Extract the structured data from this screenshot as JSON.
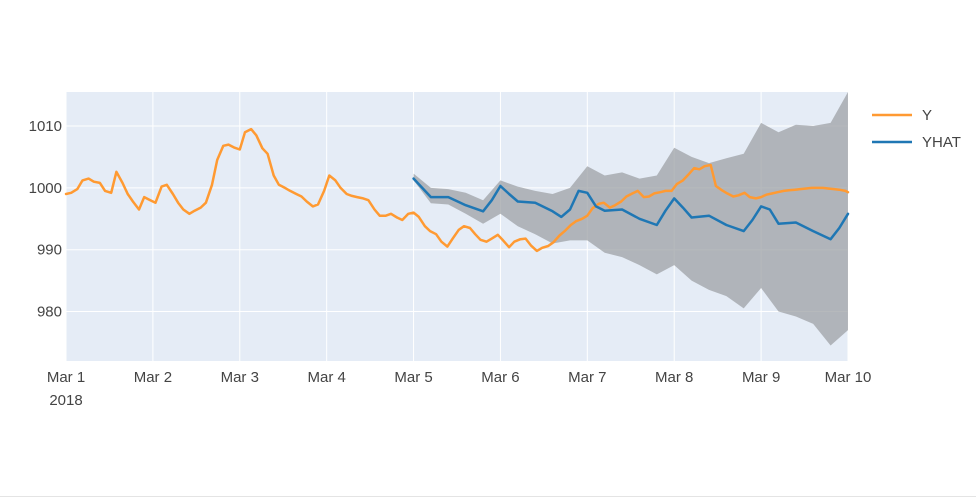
{
  "chart_data": {
    "type": "line",
    "x_ticks": [
      {
        "label": "Mar 1",
        "sub": "2018",
        "value": 0
      },
      {
        "label": "Mar 2",
        "sub": "",
        "value": 1
      },
      {
        "label": "Mar 3",
        "sub": "",
        "value": 2
      },
      {
        "label": "Mar 4",
        "sub": "",
        "value": 3
      },
      {
        "label": "Mar 5",
        "sub": "",
        "value": 4
      },
      {
        "label": "Mar 6",
        "sub": "",
        "value": 5
      },
      {
        "label": "Mar 7",
        "sub": "",
        "value": 6
      },
      {
        "label": "Mar 8",
        "sub": "",
        "value": 7
      },
      {
        "label": "Mar 9",
        "sub": "",
        "value": 8
      },
      {
        "label": "Mar 10",
        "sub": "",
        "value": 9
      }
    ],
    "y_ticks": [
      980,
      990,
      1000,
      1010
    ],
    "xlim": [
      0,
      9
    ],
    "ylim": [
      972,
      1015.5
    ],
    "grid": true,
    "legend_position": "right",
    "colors": {
      "Y": "#ff9a32",
      "YHAT": "#1f77b4",
      "band": "#9ea1a6",
      "plot_bg": "#e5ecf6",
      "grid": "#ffffff",
      "tick_text": "#444444"
    },
    "series": [
      {
        "name": "Y",
        "x": [
          0.0,
          0.06,
          0.13,
          0.19,
          0.26,
          0.32,
          0.39,
          0.45,
          0.52,
          0.58,
          0.65,
          0.71,
          0.77,
          0.84,
          0.9,
          0.97,
          1.03,
          1.1,
          1.16,
          1.23,
          1.29,
          1.35,
          1.42,
          1.48,
          1.55,
          1.61,
          1.68,
          1.74,
          1.81,
          1.87,
          1.94,
          2.0,
          2.06,
          2.13,
          2.19,
          2.26,
          2.32,
          2.39,
          2.45,
          2.52,
          2.58,
          2.65,
          2.71,
          2.77,
          2.84,
          2.9,
          2.97,
          3.03,
          3.1,
          3.16,
          3.23,
          3.29,
          3.35,
          3.42,
          3.48,
          3.55,
          3.61,
          3.68,
          3.74,
          3.81,
          3.87,
          3.94,
          4.0,
          4.06,
          4.13,
          4.19,
          4.26,
          4.32,
          4.39,
          4.45,
          4.52,
          4.58,
          4.65,
          4.71,
          4.77,
          4.84,
          4.9,
          4.97,
          5.03,
          5.1,
          5.16,
          5.23,
          5.29,
          5.35,
          5.42,
          5.48,
          5.55,
          5.61,
          5.68,
          5.74,
          5.81,
          5.87,
          5.94,
          6.0,
          6.06,
          6.13,
          6.19,
          6.26,
          6.32,
          6.39,
          6.45,
          6.52,
          6.58,
          6.65,
          6.71,
          6.77,
          6.84,
          6.9,
          6.97,
          7.03,
          7.1,
          7.16,
          7.23,
          7.29,
          7.35,
          7.42,
          7.48,
          7.55,
          7.61,
          7.68,
          7.74,
          7.81,
          7.87,
          7.94,
          8.0,
          8.06,
          8.13,
          8.19,
          8.26,
          8.32,
          8.39,
          8.45,
          8.52,
          8.58,
          8.65,
          8.71,
          8.77,
          8.84,
          8.9,
          8.97,
          9.0
        ],
        "values": [
          999,
          999.2,
          999.8,
          1001.2,
          1001.5,
          1001,
          1000.8,
          999.5,
          999.2,
          1002.6,
          1000.8,
          999,
          997.8,
          996.5,
          998.5,
          998,
          997.6,
          1000.2,
          1000.5,
          999,
          997.6,
          996.5,
          995.8,
          996.3,
          996.8,
          997.6,
          1000.5,
          1004.5,
          1006.8,
          1007,
          1006.5,
          1006.2,
          1009,
          1009.5,
          1008.5,
          1006.4,
          1005.5,
          1002,
          1000.5,
          1000,
          999.5,
          999,
          998.6,
          997.8,
          997,
          997.3,
          999.5,
          1002,
          1001.2,
          1000,
          999,
          998.7,
          998.5,
          998.3,
          998,
          996.5,
          995.5,
          995.5,
          995.8,
          995.2,
          994.8,
          995.8,
          996,
          995.3,
          993.8,
          993,
          992.5,
          991.3,
          990.5,
          991.8,
          993.2,
          993.8,
          993.5,
          992.5,
          991.6,
          991.3,
          991.8,
          992.4,
          991.5,
          990.4,
          991.3,
          991.7,
          991.8,
          990.7,
          989.8,
          990.3,
          990.6,
          991.2,
          992.3,
          993,
          994,
          994.6,
          995,
          995.5,
          996.7,
          997.4,
          997.6,
          996.8,
          997.2,
          997.8,
          998.6,
          999.1,
          999.5,
          998.5,
          998.6,
          999.1,
          999.3,
          999.5,
          999.5,
          1000.6,
          1001.2,
          1002.1,
          1003.2,
          1003,
          1003.5,
          1003.7,
          1000.3,
          999.6,
          999.1,
          998.6,
          998.8,
          999.2,
          998.5,
          998.3,
          998.5,
          998.9,
          999.1,
          999.3,
          999.5,
          999.6,
          999.7,
          999.8,
          999.9,
          1000,
          1000,
          1000,
          999.9,
          999.8,
          999.7,
          999.5,
          999.3
        ]
      },
      {
        "name": "YHAT",
        "x": [
          4.0,
          4.2,
          4.4,
          4.6,
          4.8,
          4.9,
          5.0,
          5.1,
          5.2,
          5.4,
          5.6,
          5.7,
          5.8,
          5.9,
          6.0,
          6.1,
          6.2,
          6.4,
          6.6,
          6.8,
          6.9,
          7.0,
          7.1,
          7.2,
          7.4,
          7.6,
          7.8,
          7.9,
          8.0,
          8.1,
          8.2,
          8.4,
          8.6,
          8.8,
          8.9,
          9.0
        ],
        "values": [
          1001.5,
          998.5,
          998.5,
          997.2,
          996.2,
          998,
          1000.3,
          999,
          997.8,
          997.6,
          996.2,
          995.3,
          996.5,
          999.5,
          999.2,
          997,
          996.3,
          996.5,
          995,
          994,
          996.3,
          998.3,
          996.8,
          995.2,
          995.5,
          994,
          993,
          994.8,
          997,
          996.5,
          994.2,
          994.4,
          993,
          991.7,
          993.5,
          995.8
        ]
      }
    ],
    "band": {
      "name": "",
      "x": [
        4.0,
        4.2,
        4.4,
        4.6,
        4.8,
        5.0,
        5.2,
        5.4,
        5.6,
        5.8,
        6.0,
        6.2,
        6.4,
        6.6,
        6.8,
        7.0,
        7.2,
        7.4,
        7.6,
        7.8,
        8.0,
        8.2,
        8.4,
        8.6,
        8.8,
        9.0
      ],
      "upper": [
        1002.3,
        1000,
        999.8,
        999.2,
        998,
        1001.2,
        1000.2,
        999.5,
        999,
        1000,
        1003.5,
        1002,
        1002.5,
        1001.5,
        1002,
        1006.5,
        1005,
        1004,
        1004.8,
        1005.5,
        1010.5,
        1009,
        1010.2,
        1010,
        1010.5,
        1015.5
      ],
      "lower": [
        1001.2,
        997.5,
        997.3,
        995.8,
        994.2,
        995.8,
        993.8,
        992.5,
        991,
        991.5,
        991.5,
        989.5,
        988.8,
        987.5,
        986,
        987.5,
        985,
        983.5,
        982.5,
        980.5,
        983.8,
        980,
        979.2,
        978,
        974.5,
        977
      ]
    }
  }
}
